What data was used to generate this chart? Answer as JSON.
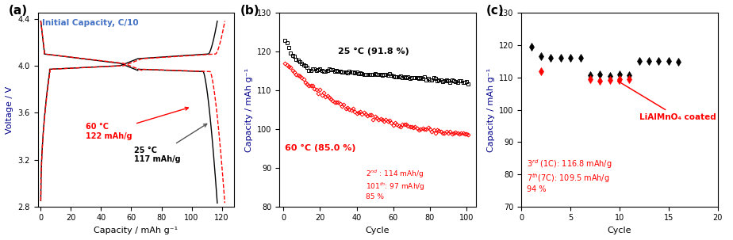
{
  "panel_a": {
    "title": "Initial Capacity, C/10",
    "xlabel": "Capacity / mAh g⁻¹",
    "ylabel": "Voltage / V",
    "xlim": [
      -2,
      128
    ],
    "ylim": [
      2.8,
      4.45
    ],
    "yticks": [
      2.8,
      3.2,
      3.6,
      4.0,
      4.4
    ],
    "xticks": [
      0,
      20,
      40,
      60,
      80,
      100,
      120
    ],
    "color_60": "#ff0000",
    "color_25": "#000000",
    "annot_60_text": "60 °C\n122 mAh/g",
    "annot_25_text": "25 °C\n117 mAh/g"
  },
  "panel_b": {
    "xlabel": "Cycle",
    "ylabel": "Capacity / mAh g⁻¹",
    "xlim": [
      -2,
      105
    ],
    "ylim": [
      80,
      130
    ],
    "yticks": [
      80,
      90,
      100,
      110,
      120,
      130
    ],
    "xticks": [
      0,
      20,
      40,
      60,
      80,
      100
    ],
    "color_25": "#000000",
    "color_60": "#ff0000",
    "annot_25": "25 °C (91.8 %)",
    "annot_60": "60 °C (85.0 %)"
  },
  "panel_c": {
    "xlabel": "Cycle",
    "ylabel": "Capacity / mAh g⁻¹",
    "xlim": [
      0,
      20
    ],
    "ylim": [
      70,
      130
    ],
    "yticks": [
      70,
      80,
      90,
      100,
      110,
      120,
      130
    ],
    "xticks": [
      0,
      5,
      10,
      15,
      20
    ],
    "color_black": "#000000",
    "color_red": "#ff0000",
    "black_x": [
      1,
      2,
      3,
      4,
      5,
      6,
      7,
      8,
      9,
      10,
      11,
      12,
      13,
      14,
      15,
      16
    ],
    "black_y": [
      119.5,
      116.5,
      116.2,
      116.0,
      116.0,
      116.0,
      110.8,
      111.0,
      110.5,
      111.0,
      110.8,
      115.0,
      115.0,
      115.0,
      115.0,
      114.8
    ],
    "red_x": [
      2,
      7,
      8,
      9,
      10,
      11
    ],
    "red_y": [
      112.0,
      109.5,
      109.0,
      109.2,
      109.5,
      109.5
    ],
    "annot_arrow": "LiAlMnO₄ coated"
  }
}
